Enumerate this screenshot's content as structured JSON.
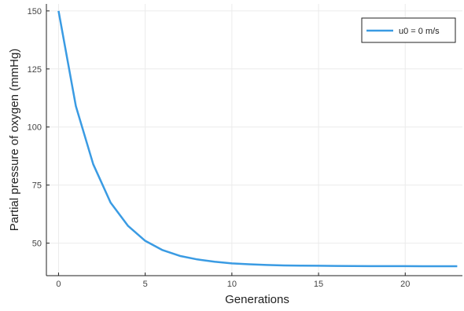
{
  "chart_data": {
    "type": "line",
    "xlabel": "Generations",
    "ylabel": "Partial pressure of oxygen (mmHg)",
    "xlim": [
      -0.7,
      23.3
    ],
    "ylim": [
      36,
      153
    ],
    "xticks": [
      0,
      5,
      10,
      15,
      20
    ],
    "yticks": [
      50,
      75,
      100,
      125,
      150
    ],
    "grid": true,
    "legend_position": "top-right",
    "series": [
      {
        "name": "u0 = 0 m/s",
        "color": "#3a9be3",
        "x": [
          0,
          1,
          2,
          3,
          4,
          5,
          6,
          7,
          8,
          9,
          10,
          11,
          12,
          13,
          14,
          15,
          16,
          17,
          18,
          19,
          20,
          21,
          22,
          23
        ],
        "y": [
          150,
          109,
          84,
          67.5,
          57.5,
          51,
          47,
          44.5,
          43,
          42,
          41.3,
          40.9,
          40.6,
          40.4,
          40.3,
          40.25,
          40.2,
          40.15,
          40.12,
          40.1,
          40.08,
          40.06,
          40.05,
          40.05
        ]
      }
    ]
  }
}
